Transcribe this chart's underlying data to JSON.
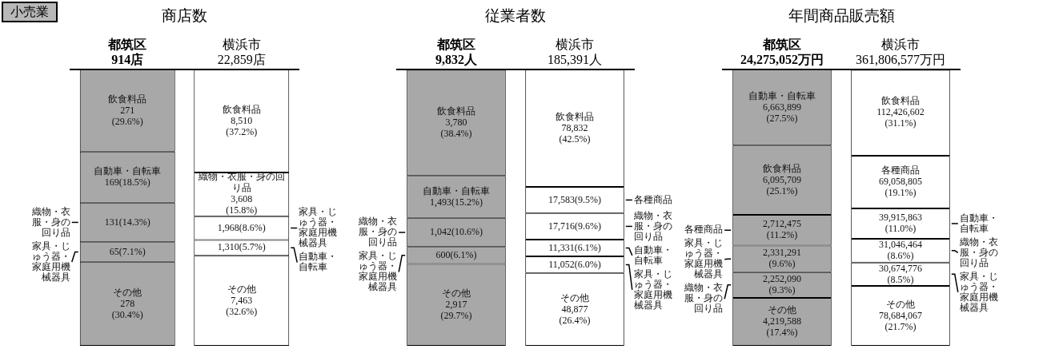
{
  "chart_data": [
    {
      "type": "bar",
      "title": "商店数",
      "annotations": [
        "小売業"
      ],
      "categories": [
        "都筑区\n914店",
        "横浜市\n22,859店"
      ],
      "stacked": true,
      "tick_labels": "x",
      "grid": false,
      "legend": false,
      "series": [
        {
          "name": "その他",
          "color": "#a8a8a8",
          "values": [
            30.4,
            null
          ],
          "value_labels": [
            "278\n(30.4%)",
            null
          ]
        },
        {
          "name": "家具・じゅう器・家庭用機械器具",
          "color": "#a8a8a8",
          "values": [
            7.1,
            null
          ],
          "value_labels": [
            "65(7.1%)",
            null
          ]
        },
        {
          "name": "織物・衣服・身の回り品",
          "color": "#a8a8a8",
          "values": [
            14.3,
            null
          ],
          "value_labels": [
            "131(14.3%)",
            null
          ]
        },
        {
          "name": "自動車・自転車",
          "color": "#a8a8a8",
          "values": [
            18.5,
            null
          ],
          "value_labels": [
            "169(18.5%)",
            null
          ]
        },
        {
          "name": "飲食料品",
          "color": "#a8a8a8",
          "values": [
            29.6,
            null
          ],
          "value_labels": [
            "271\n(29.6%)",
            null
          ]
        },
        {
          "name": "その他",
          "color": "#ffffff",
          "values": [
            null,
            32.6
          ],
          "value_labels": [
            null,
            "7,463\n(32.6%)"
          ]
        },
        {
          "name": "自動車・自転車",
          "color": "#ffffff",
          "values": [
            null,
            5.7
          ],
          "value_labels": [
            null,
            "1,310(5.7%)"
          ]
        },
        {
          "name": "家具・じゅう器・家庭用機械器具",
          "color": "#ffffff",
          "values": [
            null,
            8.6
          ],
          "value_labels": [
            null,
            "1,968(8.6%)"
          ]
        },
        {
          "name": "織物・衣服・身の回り品",
          "color": "#ffffff",
          "values": [
            null,
            15.8
          ],
          "value_labels": [
            null,
            "3,608\n(15.8%)"
          ]
        },
        {
          "name": "飲食料品",
          "color": "#ffffff",
          "values": [
            null,
            37.2
          ],
          "value_labels": [
            null,
            "8,510\n(37.2%)"
          ]
        }
      ]
    },
    {
      "type": "bar",
      "title": "従業者数",
      "categories": [
        "都筑区\n9,832人",
        "横浜市\n185,391人"
      ],
      "stacked": true,
      "tick_labels": "x",
      "grid": false,
      "legend": false,
      "series": [
        {
          "name": "その他",
          "color": "#a8a8a8",
          "values": [
            29.7,
            null
          ],
          "value_labels": [
            "2,917\n(29.7%)",
            null
          ]
        },
        {
          "name": "家具・じゅう器・家庭用機械器具",
          "color": "#a8a8a8",
          "values": [
            6.1,
            null
          ],
          "value_labels": [
            "600(6.1%)",
            null
          ]
        },
        {
          "name": "織物・衣服・身の回り品",
          "color": "#a8a8a8",
          "values": [
            10.6,
            null
          ],
          "value_labels": [
            "1,042(10.6%)",
            null
          ]
        },
        {
          "name": "自動車・自転車",
          "color": "#a8a8a8",
          "values": [
            15.2,
            null
          ],
          "value_labels": [
            "1,493(15.2%)",
            null
          ]
        },
        {
          "name": "飲食料品",
          "color": "#a8a8a8",
          "values": [
            38.4,
            null
          ],
          "value_labels": [
            "3,780\n(38.4%)",
            null
          ]
        },
        {
          "name": "その他",
          "color": "#ffffff",
          "values": [
            null,
            26.4
          ],
          "value_labels": [
            null,
            "48,877\n(26.4%)"
          ]
        },
        {
          "name": "家具・じゅう器・家庭用機械器具",
          "color": "#ffffff",
          "values": [
            null,
            6.0
          ],
          "value_labels": [
            null,
            "11,052(6.0%)"
          ]
        },
        {
          "name": "自動車・自転車",
          "color": "#ffffff",
          "values": [
            null,
            6.1
          ],
          "value_labels": [
            null,
            "11,331(6.1%)"
          ]
        },
        {
          "name": "織物・衣服・身の回り品",
          "color": "#ffffff",
          "values": [
            null,
            9.6
          ],
          "value_labels": [
            null,
            "17,716(9.6%)"
          ]
        },
        {
          "name": "各種商品",
          "color": "#ffffff",
          "values": [
            null,
            9.5
          ],
          "value_labels": [
            null,
            "17,583(9.5%)"
          ]
        },
        {
          "name": "飲食料品",
          "color": "#ffffff",
          "values": [
            null,
            42.5
          ],
          "value_labels": [
            null,
            "78,832\n(42.5%)"
          ]
        }
      ]
    },
    {
      "type": "bar",
      "title": "年間商品販売額",
      "categories": [
        "都筑区\n24,275,052万円",
        "横浜市\n361,806,577万円"
      ],
      "stacked": true,
      "tick_labels": "x",
      "grid": false,
      "legend": false,
      "series": [
        {
          "name": "その他",
          "color": "#a8a8a8",
          "values": [
            17.4,
            null
          ],
          "value_labels": [
            "4,219,588\n(17.4%)",
            null
          ]
        },
        {
          "name": "織物・衣服・身の回り品",
          "color": "#a8a8a8",
          "values": [
            9.3,
            null
          ],
          "value_labels": [
            "2,252,090\n(9.3%)",
            null
          ]
        },
        {
          "name": "家具・じゅう器・家庭用機械器具",
          "color": "#a8a8a8",
          "values": [
            9.6,
            null
          ],
          "value_labels": [
            "2,331,291\n(9.6%)",
            null
          ]
        },
        {
          "name": "各種商品",
          "color": "#a8a8a8",
          "values": [
            11.2,
            null
          ],
          "value_labels": [
            "2,712,475\n(11.2%)",
            null
          ]
        },
        {
          "name": "飲食料品",
          "color": "#a8a8a8",
          "values": [
            25.1,
            null
          ],
          "value_labels": [
            "6,095,709\n(25.1%)",
            null
          ]
        },
        {
          "name": "自動車・自転車",
          "color": "#a8a8a8",
          "values": [
            27.5,
            null
          ],
          "value_labels": [
            "6,663,899\n(27.5%)",
            null
          ]
        },
        {
          "name": "その他",
          "color": "#ffffff",
          "values": [
            null,
            21.7
          ],
          "value_labels": [
            null,
            "78,684,067\n(21.7%)"
          ]
        },
        {
          "name": "家具・じゅう器・家庭用機械器具",
          "color": "#ffffff",
          "values": [
            null,
            8.5
          ],
          "value_labels": [
            null,
            "30,674,776\n(8.5%)"
          ]
        },
        {
          "name": "織物・衣服・身の回り品",
          "color": "#ffffff",
          "values": [
            null,
            8.6
          ],
          "value_labels": [
            null,
            "31,046,464\n(8.6%)"
          ]
        },
        {
          "name": "自動車・自転車",
          "color": "#ffffff",
          "values": [
            null,
            11.0
          ],
          "value_labels": [
            null,
            "39,915,863\n(11.0%)"
          ]
        },
        {
          "name": "各種商品",
          "color": "#ffffff",
          "values": [
            null,
            19.1
          ],
          "value_labels": [
            null,
            "69,058,805\n(19.1%)"
          ]
        },
        {
          "name": "飲食料品",
          "color": "#ffffff",
          "values": [
            null,
            31.1
          ],
          "value_labels": [
            null,
            "112,426,602\n(31.1%)"
          ]
        }
      ]
    }
  ]
}
